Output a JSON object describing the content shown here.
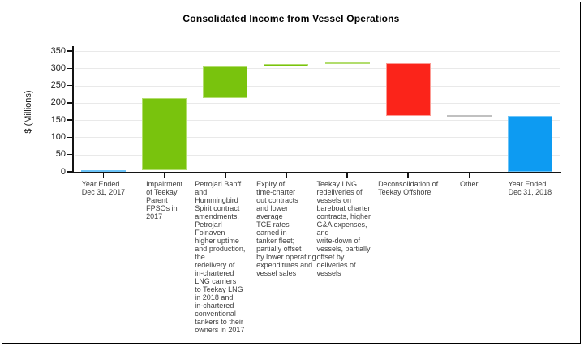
{
  "title": "Consolidated Income from Vessel Operations",
  "chart_data": {
    "type": "bar",
    "subtype": "waterfall",
    "title": "Consolidated Income from Vessel Operations",
    "xlabel": "",
    "ylabel": "$ (Millions)",
    "ylim": [
      0,
      350
    ],
    "yticks": [
      0,
      50,
      100,
      150,
      200,
      250,
      300,
      350
    ],
    "grid": "horizontal-light",
    "legend": "none",
    "categories": [
      "Year Ended\nDec 31, 2017",
      "Impairment\nof Teekay\nParent\nFPSOs in\n2017",
      "Petrojarl Banff\nand\nHummingbird\nSpirit contract\namendments,\nPetrojarl\nFoinaven\nhigher uptime\nand production, the\nredelivery of\nin-chartered\nLNG carriers\nto Teekay LNG\nin 2018 and\nin-chartered\nconventional\ntankers to their\nowners in 2017",
      "Expiry of\ntime-charter\nout contracts\nand lower\naverage\nTCE rates\nearned in\ntanker fleet;\npartially offset\nby lower operating\nexpenditures and\nvessel sales",
      "Teekay LNG\nredeliveries of\nvessels on\nbareboat charter\ncontracts, higher\nG&A expenses, and\nwrite-down of\nvessels, partially\noffset by\ndeliveries of\nvessels",
      "Deconsolidation of\nTeekay Offshore",
      "Other",
      "Year Ended\nDec 31, 2018"
    ],
    "bars": [
      {
        "label": "Year Ended Dec 31, 2017",
        "start": 0,
        "end": 5,
        "value": 5,
        "color": "blue"
      },
      {
        "label": "Impairment of Teekay Parent FPSOs in 2017",
        "start": 5,
        "end": 213,
        "value": 208,
        "color": "green"
      },
      {
        "label": "Petrojarl Banff and Hummingbird Spirit contract amendments, Petrojarl Foinaven higher uptime and production, the redelivery of in-chartered LNG carriers to Teekay LNG in 2018 and in-chartered conventional tankers to their owners in 2017",
        "start": 213,
        "end": 305,
        "value": 92,
        "color": "green"
      },
      {
        "label": "Expiry of time-charter out contracts and lower average TCE rates earned in tanker fleet; partially offset by lower operating expenditures and vessel sales",
        "start": 305,
        "end": 312,
        "value": 7,
        "color": "green"
      },
      {
        "label": "Teekay LNG redeliveries of vessels on bareboat charter contracts, higher G&A expenses, and write-down of vessels, partially offset by deliveries of vessels",
        "start": 312,
        "end": 316,
        "value": 4,
        "color": "green"
      },
      {
        "label": "Deconsolidation of Teekay Offshore",
        "start": 316,
        "end": 162,
        "value": -154,
        "color": "red"
      },
      {
        "label": "Other",
        "start": 162,
        "end": 162,
        "value": 0,
        "color": "gray"
      },
      {
        "label": "Year Ended Dec 31, 2018",
        "start": 0,
        "end": 162,
        "value": 162,
        "color": "blue"
      }
    ],
    "colors": {
      "blue": {
        "fill": "#0d9bf2",
        "border": "#6cc4f8"
      },
      "green": {
        "fill": "#79c30d",
        "border": "#b2dd6e"
      },
      "red": {
        "fill": "#fb241a",
        "border": "#fc9b94"
      },
      "gray": {
        "fill": "#8a8a8a",
        "border": "#c0c0c0"
      },
      "grid": "#e9e9e9",
      "axis": "#141414"
    }
  }
}
